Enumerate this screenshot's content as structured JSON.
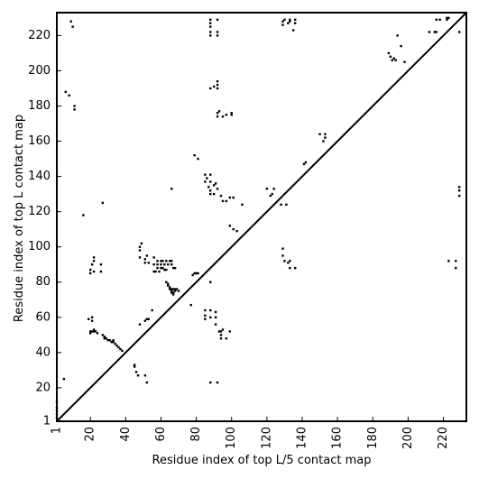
{
  "chart_data": {
    "type": "scatter",
    "title": "",
    "xlabel": "Residue index of top L/5 contact map",
    "ylabel": "Residue index of top L contact map",
    "xlim": [
      1,
      233
    ],
    "ylim": [
      1,
      233
    ],
    "x_ticks": [
      1,
      20,
      40,
      60,
      80,
      100,
      120,
      140,
      160,
      180,
      200,
      220
    ],
    "y_ticks": [
      1,
      20,
      40,
      60,
      80,
      100,
      120,
      140,
      160,
      180,
      200,
      220
    ],
    "grid": false,
    "diagonal": true,
    "marker": "square",
    "colors": {
      "points": "#000000",
      "axes": "#000000",
      "background": "#ffffff"
    },
    "series": [
      {
        "values_xy": [
          [
            1,
            3
          ],
          [
            1,
            5
          ],
          [
            1,
            7
          ],
          [
            1,
            9
          ],
          [
            1,
            12
          ],
          [
            5,
            25
          ],
          [
            9,
            228
          ],
          [
            10,
            225
          ],
          [
            11,
            178
          ],
          [
            11,
            180
          ],
          [
            6,
            188
          ],
          [
            8,
            186
          ],
          [
            16,
            118
          ],
          [
            19,
            59
          ],
          [
            20,
            51
          ],
          [
            20,
            52
          ],
          [
            21,
            52
          ],
          [
            22,
            52
          ],
          [
            22,
            53
          ],
          [
            23,
            52
          ],
          [
            24,
            51
          ],
          [
            21,
            58
          ],
          [
            21,
            60
          ],
          [
            20,
            85
          ],
          [
            20,
            87
          ],
          [
            22,
            86
          ],
          [
            21,
            90
          ],
          [
            22,
            92
          ],
          [
            22,
            94
          ],
          [
            26,
            86
          ],
          [
            26,
            90
          ],
          [
            27,
            125
          ],
          [
            27,
            50
          ],
          [
            28,
            49
          ],
          [
            28,
            48
          ],
          [
            29,
            48
          ],
          [
            30,
            47
          ],
          [
            31,
            47
          ],
          [
            32,
            46
          ],
          [
            33,
            47
          ],
          [
            33,
            46
          ],
          [
            34,
            45
          ],
          [
            35,
            44
          ],
          [
            36,
            43
          ],
          [
            37,
            42
          ],
          [
            38,
            41
          ],
          [
            45,
            32
          ],
          [
            45,
            33
          ],
          [
            46,
            29
          ],
          [
            47,
            27
          ],
          [
            51,
            27
          ],
          [
            52,
            23
          ],
          [
            48,
            56
          ],
          [
            51,
            58
          ],
          [
            52,
            59
          ],
          [
            53,
            59
          ],
          [
            48,
            94
          ],
          [
            48,
            98
          ],
          [
            48,
            100
          ],
          [
            49,
            102
          ],
          [
            51,
            91
          ],
          [
            51,
            93
          ],
          [
            52,
            95
          ],
          [
            53,
            91
          ],
          [
            55,
            64
          ],
          [
            56,
            86
          ],
          [
            57,
            86
          ],
          [
            58,
            88
          ],
          [
            59,
            86
          ],
          [
            60,
            88
          ],
          [
            61,
            88
          ],
          [
            62,
            87
          ],
          [
            63,
            87
          ],
          [
            61,
            92
          ],
          [
            63,
            92
          ],
          [
            65,
            92
          ],
          [
            66,
            90
          ],
          [
            67,
            88
          ],
          [
            68,
            88
          ],
          [
            56,
            90
          ],
          [
            58,
            90
          ],
          [
            60,
            90
          ],
          [
            62,
            90
          ],
          [
            64,
            90
          ],
          [
            66,
            92
          ],
          [
            58,
            92
          ],
          [
            60,
            92
          ],
          [
            56,
            94
          ],
          [
            63,
            80
          ],
          [
            64,
            79
          ],
          [
            64,
            78
          ],
          [
            65,
            77
          ],
          [
            65,
            76
          ],
          [
            66,
            76
          ],
          [
            66,
            75
          ],
          [
            67,
            74
          ],
          [
            67,
            73
          ],
          [
            68,
            75
          ],
          [
            68,
            76
          ],
          [
            69,
            76
          ],
          [
            70,
            75
          ],
          [
            66,
            74
          ],
          [
            67,
            76
          ],
          [
            66,
            133
          ],
          [
            77,
            67
          ],
          [
            78,
            84
          ],
          [
            79,
            85
          ],
          [
            80,
            85
          ],
          [
            81,
            85
          ],
          [
            79,
            152
          ],
          [
            81,
            150
          ],
          [
            85,
            137
          ],
          [
            85,
            141
          ],
          [
            86,
            139
          ],
          [
            88,
            137
          ],
          [
            88,
            141
          ],
          [
            87,
            134
          ],
          [
            88,
            132
          ],
          [
            88,
            130
          ],
          [
            90,
            130
          ],
          [
            90,
            135
          ],
          [
            91,
            136
          ],
          [
            92,
            133
          ],
          [
            94,
            129
          ],
          [
            95,
            126
          ],
          [
            97,
            126
          ],
          [
            99,
            128
          ],
          [
            101,
            128
          ],
          [
            85,
            59
          ],
          [
            85,
            61
          ],
          [
            85,
            64
          ],
          [
            88,
            60
          ],
          [
            88,
            64
          ],
          [
            91,
            56
          ],
          [
            91,
            60
          ],
          [
            91,
            63
          ],
          [
            93,
            52
          ],
          [
            94,
            52
          ],
          [
            94,
            50
          ],
          [
            94,
            48
          ],
          [
            95,
            53
          ],
          [
            97,
            48
          ],
          [
            99,
            52
          ],
          [
            88,
            80
          ],
          [
            88,
            23
          ],
          [
            92,
            23
          ],
          [
            88,
            190
          ],
          [
            90,
            191
          ],
          [
            92,
            190
          ],
          [
            92,
            192
          ],
          [
            92,
            194
          ],
          [
            92,
            174
          ],
          [
            92,
            176
          ],
          [
            93,
            177
          ],
          [
            95,
            174
          ],
          [
            97,
            175
          ],
          [
            100,
            175
          ],
          [
            100,
            176
          ],
          [
            99,
            112
          ],
          [
            101,
            110
          ],
          [
            103,
            109
          ],
          [
            106,
            124
          ],
          [
            88,
            220
          ],
          [
            88,
            222
          ],
          [
            88,
            225
          ],
          [
            88,
            227
          ],
          [
            88,
            229
          ],
          [
            92,
            220
          ],
          [
            92,
            222
          ],
          [
            92,
            229
          ],
          [
            120,
            133
          ],
          [
            122,
            129
          ],
          [
            123,
            130
          ],
          [
            124,
            133
          ],
          [
            128,
            124
          ],
          [
            131,
            124
          ],
          [
            129,
            99
          ],
          [
            129,
            95
          ],
          [
            130,
            92
          ],
          [
            132,
            91
          ],
          [
            133,
            92
          ],
          [
            133,
            88
          ],
          [
            136,
            88
          ],
          [
            141,
            147
          ],
          [
            142,
            148
          ],
          [
            129,
            226
          ],
          [
            129,
            228
          ],
          [
            130,
            229
          ],
          [
            132,
            227
          ],
          [
            133,
            228
          ],
          [
            133,
            229
          ],
          [
            135,
            223
          ],
          [
            136,
            227
          ],
          [
            136,
            229
          ],
          [
            150,
            164
          ],
          [
            152,
            160
          ],
          [
            153,
            164
          ],
          [
            153,
            162
          ],
          [
            189,
            210
          ],
          [
            190,
            208
          ],
          [
            191,
            206
          ],
          [
            192,
            207
          ],
          [
            193,
            206
          ],
          [
            194,
            220
          ],
          [
            196,
            214
          ],
          [
            198,
            205
          ],
          [
            212,
            222
          ],
          [
            215,
            222
          ],
          [
            216,
            229
          ],
          [
            216,
            222
          ],
          [
            218,
            229
          ],
          [
            222,
            230
          ],
          [
            222,
            229
          ],
          [
            223,
            230
          ],
          [
            223,
            92
          ],
          [
            227,
            92
          ],
          [
            227,
            88
          ],
          [
            229,
            222
          ],
          [
            229,
            129
          ],
          [
            229,
            132
          ],
          [
            229,
            134
          ]
        ]
      }
    ]
  }
}
